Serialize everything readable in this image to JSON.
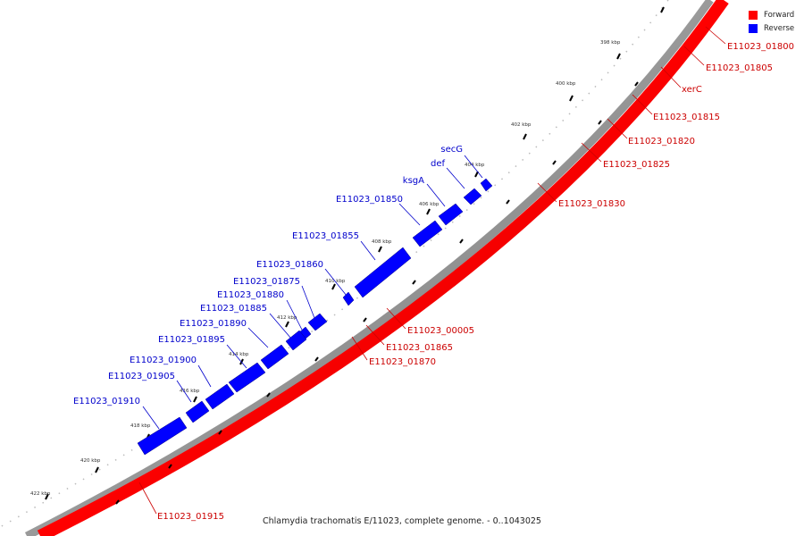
{
  "colors": {
    "forward": "#ff0000",
    "reverse": "#0000ff",
    "backbone": "#888888"
  },
  "legend": [
    {
      "label": "Forward",
      "color": "#ff0000"
    },
    {
      "label": "Reverse",
      "color": "#0000ff"
    }
  ],
  "caption": "Chlamydia trachomatis E/11023, complete genome. - 0..1043025",
  "ticks": [
    "398 kbp",
    "400 kbp",
    "402 kbp",
    "404 kbp",
    "406 kbp",
    "408 kbp",
    "410 kbp",
    "412 kbp",
    "414 kbp",
    "416 kbp",
    "418 kbp",
    "420 kbp",
    "422 kbp"
  ],
  "forward_genes": [
    "E11023_01800",
    "E11023_01805",
    "xerC",
    "E11023_01815",
    "E11023_01820",
    "E11023_01825",
    "E11023_01830",
    "E11023_00005",
    "E11023_01865",
    "E11023_01870",
    "E11023_01915"
  ],
  "reverse_genes": [
    "secG",
    "def",
    "ksgA",
    "E11023_01850",
    "E11023_01855",
    "E11023_01860",
    "E11023_01875",
    "E11023_01880",
    "E11023_01885",
    "E11023_01890",
    "E11023_01895",
    "E11023_01900",
    "E11023_01905",
    "E11023_01910"
  ]
}
